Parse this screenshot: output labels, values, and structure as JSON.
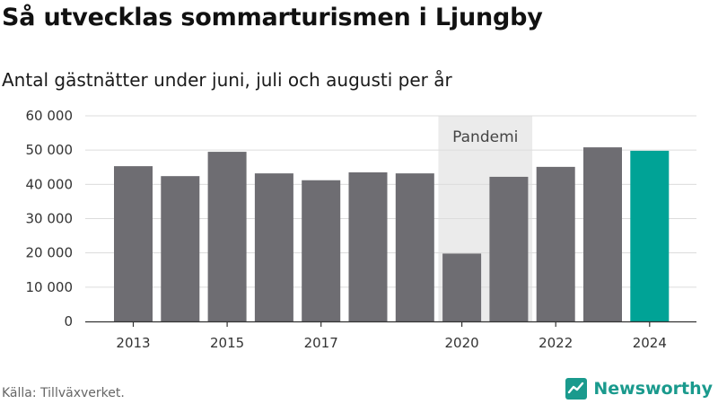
{
  "header": {
    "title": "Så utvecklas sommarturismen i Ljungby",
    "subtitle": "Antal gästnätter under juni, juli och augusti per år"
  },
  "footer": {
    "source": "Källa: Tillväxverket.",
    "brand": "Newsworthy"
  },
  "colors": {
    "bar": "#6e6d72",
    "highlight": "#00a396",
    "shade": "#ebebeb",
    "brand": "#1a9a8d"
  },
  "chart_data": {
    "type": "bar",
    "categories": [
      "2013",
      "2014",
      "2015",
      "2016",
      "2017",
      "2018",
      "2019",
      "2020",
      "2021",
      "2022",
      "2023",
      "2024"
    ],
    "values": [
      45300,
      42400,
      49500,
      43200,
      41200,
      43500,
      43200,
      19800,
      42200,
      45100,
      50800,
      49800
    ],
    "highlight_index": 11,
    "x_tick_labels": [
      "2013",
      "2015",
      "2017",
      "2020",
      "2022",
      "2024"
    ],
    "y_ticks": [
      0,
      10000,
      20000,
      30000,
      40000,
      50000,
      60000
    ],
    "y_tick_labels": [
      "0",
      "10 000",
      "20 000",
      "30 000",
      "40 000",
      "50 000",
      "60 000"
    ],
    "ylim": [
      0,
      60000
    ],
    "shaded_region": {
      "label": "Pandemi",
      "from": "2020",
      "to": "2021"
    },
    "grid": true,
    "legend": "none"
  }
}
